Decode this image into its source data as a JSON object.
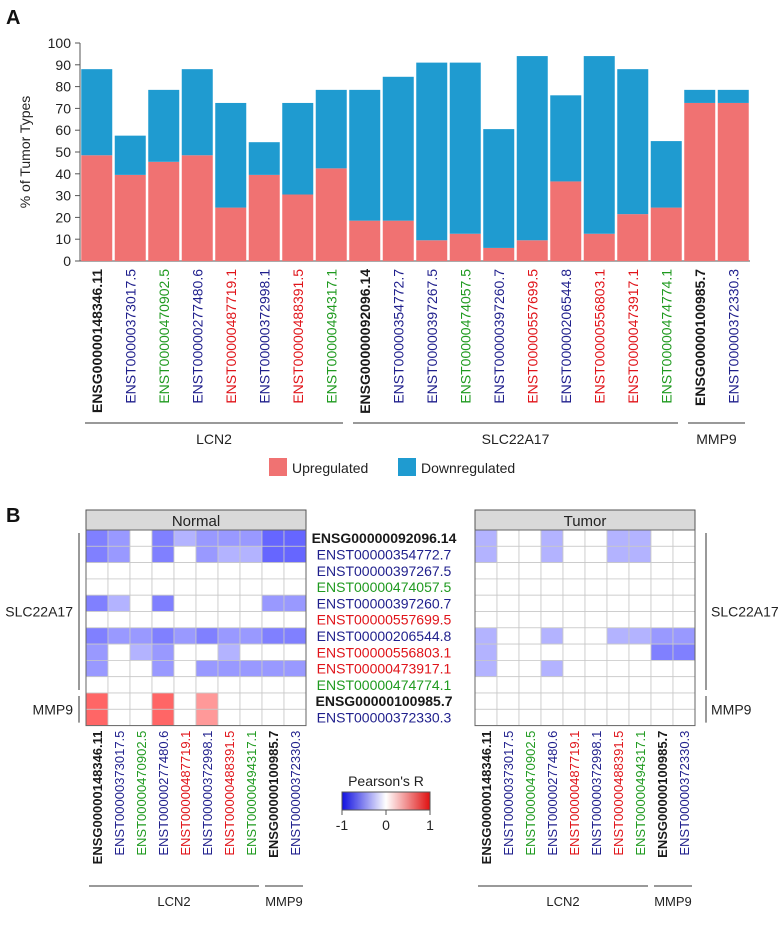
{
  "panel_a": {
    "label": "A"
  },
  "panel_b": {
    "label": "B"
  },
  "colors": {
    "black": "#1a1a1a",
    "navy": "#1f1f8c",
    "green": "#1f9a1f",
    "red": "#e0141a",
    "up": "#f07272",
    "down": "#1f9bd0",
    "panel": "#d9d9d9"
  },
  "chart_data": [
    {
      "type": "bar",
      "stacked": true,
      "ylabel": "% of Tumor Types",
      "ylim": [
        0,
        100
      ],
      "yticks": [
        0,
        10,
        20,
        30,
        40,
        50,
        60,
        70,
        80,
        90,
        100
      ],
      "categories": [
        "ENSG00000148346.11",
        "ENST00000373017.5",
        "ENST00000470902.5",
        "ENST00000277480.6",
        "ENST00000487719.1",
        "ENST00000372998.1",
        "ENST00000488391.5",
        "ENST00000494317.1",
        "ENSG00000092096.14",
        "ENST00000354772.7",
        "ENST00000397267.5",
        "ENST00000474057.5",
        "ENST00000397260.7",
        "ENST00000557699.5",
        "ENST00000206544.8",
        "ENST00000556803.1",
        "ENST00000473917.1",
        "ENST00000474774.1",
        "ENSG00000100985.7",
        "ENST00000372330.3"
      ],
      "category_colors": [
        "black",
        "navy",
        "green",
        "navy",
        "red",
        "navy",
        "red",
        "green",
        "black",
        "navy",
        "navy",
        "green",
        "navy",
        "red",
        "navy",
        "red",
        "red",
        "green",
        "black",
        "navy"
      ],
      "gene_groups": [
        {
          "name": "LCN2",
          "start": 0,
          "end": 7
        },
        {
          "name": "SLC22A17",
          "start": 8,
          "end": 17
        },
        {
          "name": "MMP9",
          "start": 18,
          "end": 19
        }
      ],
      "series": [
        {
          "name": "Upregulated",
          "color": "up",
          "values": [
            48.5,
            39.5,
            45.5,
            48.5,
            24.5,
            39.5,
            30.5,
            42.5,
            18.5,
            18.5,
            9.5,
            12.5,
            6,
            9.5,
            36.5,
            12.5,
            21.5,
            24.5,
            72.5,
            72.5
          ]
        },
        {
          "name": "Downregulated",
          "color": "down",
          "values": [
            39.5,
            18,
            33,
            39.5,
            48,
            15,
            42,
            36,
            60,
            66,
            81.5,
            78.5,
            54.5,
            84.5,
            39.5,
            81.5,
            66.5,
            30.5,
            6,
            6
          ]
        }
      ],
      "legend": "bottom-center"
    },
    {
      "type": "heatmap",
      "colorbar": {
        "title": "Pearson's R",
        "min": -1,
        "max": 1,
        "ticks": [
          "-1",
          "0",
          "1"
        ]
      },
      "rows": [
        "ENSG00000092096.14",
        "ENST00000354772.7",
        "ENST00000397267.5",
        "ENST00000474057.5",
        "ENST00000397260.7",
        "ENST00000557699.5",
        "ENST00000206544.8",
        "ENST00000556803.1",
        "ENST00000473917.1",
        "ENST00000474774.1",
        "ENSG00000100985.7",
        "ENST00000372330.3"
      ],
      "row_colors": [
        "black",
        "navy",
        "navy",
        "green",
        "navy",
        "red",
        "navy",
        "red",
        "red",
        "green",
        "black",
        "navy"
      ],
      "row_groups": [
        {
          "name": "SLC22A17",
          "start": 0,
          "end": 9
        },
        {
          "name": "MMP9",
          "start": 10,
          "end": 11
        }
      ],
      "columns": [
        "ENSG00000148346.11",
        "ENST00000373017.5",
        "ENST00000470902.5",
        "ENST00000277480.6",
        "ENST00000487719.1",
        "ENST00000372998.1",
        "ENST00000488391.5",
        "ENST00000494317.1",
        "ENSG00000100985.7",
        "ENST00000372330.3"
      ],
      "column_colors": [
        "black",
        "navy",
        "green",
        "navy",
        "red",
        "navy",
        "red",
        "green",
        "black",
        "navy"
      ],
      "column_groups": [
        {
          "name": "LCN2",
          "start": 0,
          "end": 7
        },
        {
          "name": "MMP9",
          "start": 8,
          "end": 9
        }
      ],
      "panels": [
        {
          "title": "Normal",
          "values": [
            [
              -0.5,
              -0.4,
              0,
              -0.5,
              -0.3,
              -0.4,
              -0.4,
              -0.4,
              -0.6,
              -0.6
            ],
            [
              -0.5,
              -0.4,
              0,
              -0.5,
              0,
              -0.4,
              -0.3,
              -0.3,
              -0.6,
              -0.6
            ],
            [
              0,
              0,
              0,
              0,
              0,
              0,
              0,
              0,
              0,
              0
            ],
            [
              0,
              0,
              0,
              0,
              0,
              0,
              0,
              0,
              0,
              0
            ],
            [
              -0.5,
              -0.3,
              0,
              -0.5,
              0,
              0,
              0,
              0,
              -0.4,
              -0.4
            ],
            [
              0,
              0,
              0,
              0,
              0,
              0,
              0,
              0,
              0,
              0
            ],
            [
              -0.5,
              -0.4,
              -0.4,
              -0.5,
              -0.4,
              -0.5,
              -0.4,
              -0.4,
              -0.5,
              -0.5
            ],
            [
              -0.4,
              0,
              -0.3,
              -0.4,
              0,
              0,
              -0.3,
              0,
              0,
              0
            ],
            [
              -0.4,
              0,
              0,
              -0.4,
              0,
              -0.4,
              -0.4,
              -0.4,
              -0.4,
              -0.4
            ],
            [
              0,
              0,
              0,
              0,
              0,
              0,
              0,
              0,
              0,
              0
            ],
            [
              0.6,
              0,
              0,
              0.6,
              0,
              0.4,
              0,
              0,
              0,
              0
            ],
            [
              0.6,
              0,
              0,
              0.6,
              0,
              0.4,
              0,
              0,
              0,
              0
            ]
          ]
        },
        {
          "title": "Tumor",
          "values": [
            [
              -0.3,
              0,
              0,
              -0.3,
              0,
              0,
              -0.3,
              -0.3,
              0,
              0
            ],
            [
              -0.3,
              0,
              0,
              -0.3,
              0,
              0,
              -0.3,
              -0.3,
              0,
              0
            ],
            [
              0,
              0,
              0,
              0,
              0,
              0,
              0,
              0,
              0,
              0
            ],
            [
              0,
              0,
              0,
              0,
              0,
              0,
              0,
              0,
              0,
              0
            ],
            [
              0,
              0,
              0,
              0,
              0,
              0,
              0,
              0,
              0,
              0
            ],
            [
              0,
              0,
              0,
              0,
              0,
              0,
              0,
              0,
              0,
              0
            ],
            [
              -0.3,
              0,
              0,
              -0.3,
              0,
              0,
              -0.3,
              -0.3,
              -0.4,
              -0.4
            ],
            [
              -0.3,
              0,
              0,
              0,
              0,
              0,
              0,
              0,
              -0.5,
              -0.5
            ],
            [
              -0.3,
              0,
              0,
              -0.3,
              0,
              0,
              0,
              0,
              0,
              0
            ],
            [
              0,
              0,
              0,
              0,
              0,
              0,
              0,
              0,
              0,
              0
            ],
            [
              0,
              0,
              0,
              0,
              0,
              0,
              0,
              0,
              0,
              0
            ],
            [
              0,
              0,
              0,
              0,
              0,
              0,
              0,
              0,
              0,
              0
            ]
          ]
        }
      ]
    }
  ]
}
